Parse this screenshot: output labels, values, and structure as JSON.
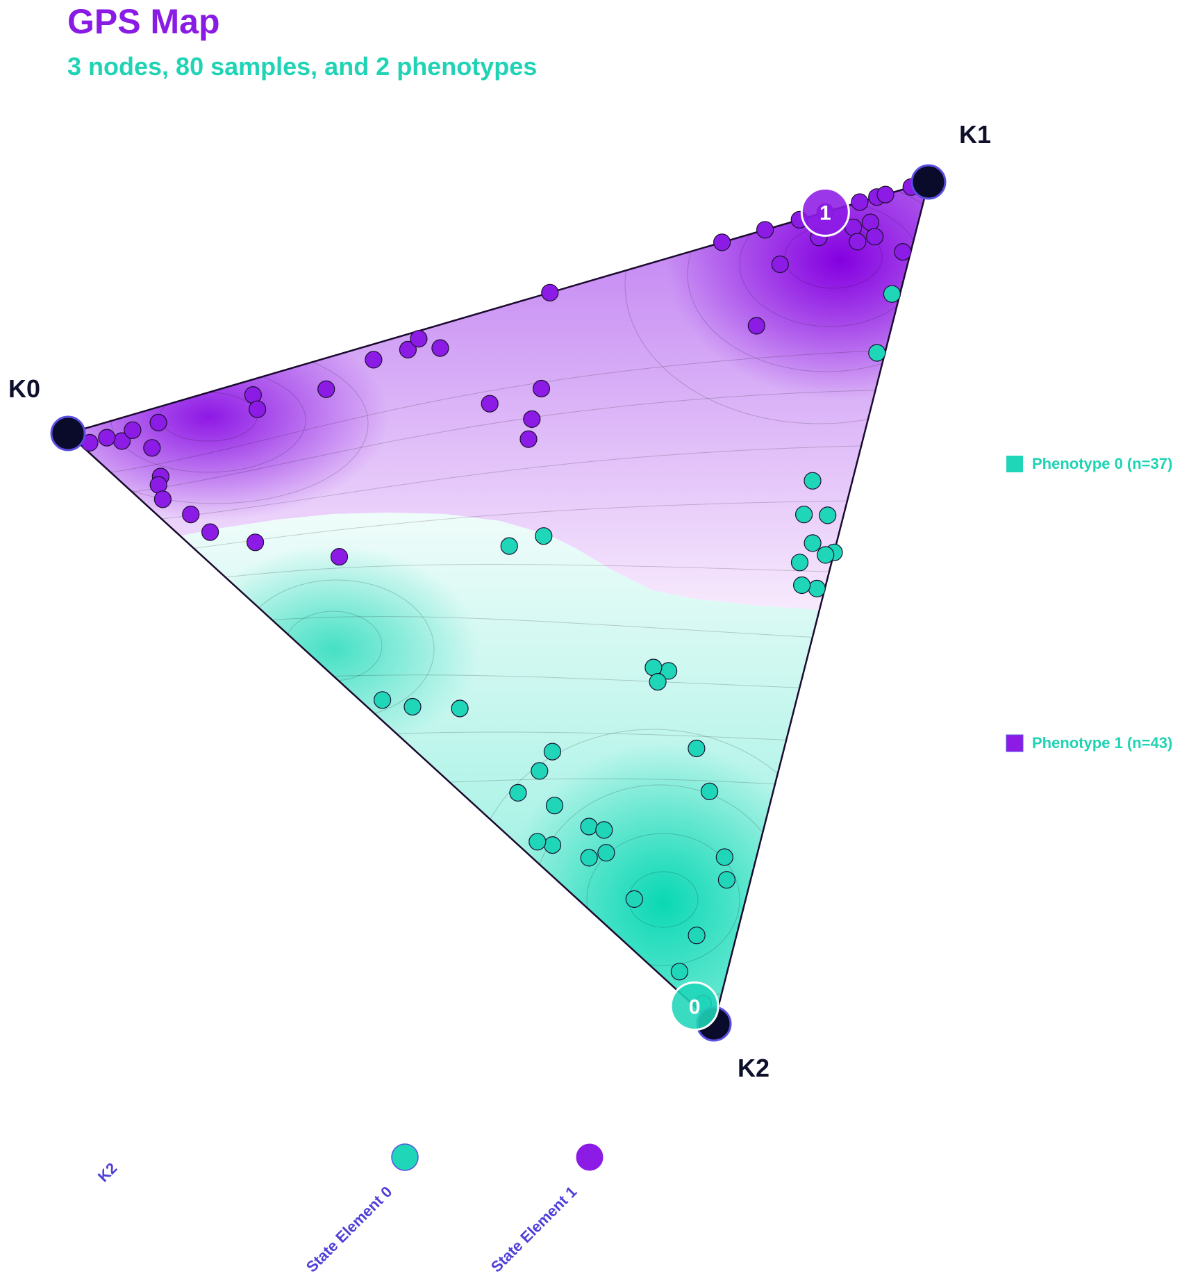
{
  "header": {
    "title": "GPS Map",
    "subtitle": "3 nodes, 80 samples, and 2 phenotypes"
  },
  "colors": {
    "title": "#8a1be4",
    "subtitle": "#1fd3b4",
    "phenotype_0": "#1fd6b8",
    "phenotype_1": "#8d1be6",
    "node": "#0a0a2a",
    "node_ring": "#5a4fe0",
    "legend_text": "#1fd3b4",
    "bottom_text": "#4f3fd8"
  },
  "chart_data": {
    "type": "scatter",
    "projection": "ternary",
    "vertices": [
      {
        "name": "K0",
        "label": "K0"
      },
      {
        "name": "K1",
        "label": "K1"
      },
      {
        "name": "K2",
        "label": "K2"
      }
    ],
    "categories": [
      {
        "label": "0",
        "phenotype": 0
      },
      {
        "label": "1",
        "phenotype": 1
      }
    ],
    "legend": [
      {
        "label": "Phenotype 0 (n=37)",
        "color": "#1fd6b8"
      },
      {
        "label": "Phenotype 1 (n=43)",
        "color": "#8d1be6"
      }
    ],
    "bottom_legend": [
      {
        "label": "K2"
      },
      {
        "label": "State Element 0",
        "color": "#1fd6b8"
      },
      {
        "label": "State Element 1",
        "color": "#8d1be6"
      }
    ],
    "series": [
      {
        "phenotype": 1,
        "points": [
          [
            0.0,
            0.99,
            0.01
          ],
          [
            0.01,
            0.97,
            0.02
          ],
          [
            0.04,
            0.93,
            0.03
          ],
          [
            0.03,
            0.95,
            0.02
          ],
          [
            0.06,
            0.92,
            0.02
          ],
          [
            0.09,
            0.89,
            0.02
          ],
          [
            0.06,
            0.89,
            0.05
          ],
          [
            0.2,
            0.78,
            0.02
          ],
          [
            0.19,
            0.77,
            0.04
          ],
          [
            0.04,
            0.87,
            0.09
          ],
          [
            0.03,
            0.87,
            0.1
          ],
          [
            0.02,
            0.86,
            0.12
          ],
          [
            0.03,
            0.82,
            0.15
          ],
          [
            0.03,
            0.79,
            0.18
          ],
          [
            0.06,
            0.73,
            0.21
          ],
          [
            0.12,
            0.62,
            0.26
          ],
          [
            0.27,
            0.69,
            0.04
          ],
          [
            0.34,
            0.64,
            0.02
          ],
          [
            0.38,
            0.6,
            0.02
          ],
          [
            0.41,
            0.56,
            0.03
          ],
          [
            0.4,
            0.59,
            0.01
          ],
          [
            0.56,
            0.44,
            0.0
          ],
          [
            0.76,
            0.24,
            0.0
          ],
          [
            0.85,
            0.15,
            0.0
          ],
          [
            0.81,
            0.19,
            0.0
          ],
          [
            0.88,
            0.12,
            0.0
          ],
          [
            0.92,
            0.08,
            0.0
          ],
          [
            0.98,
            0.02,
            0.0
          ],
          [
            0.94,
            0.06,
            0.0
          ],
          [
            0.95,
            0.05,
            0.0
          ],
          [
            0.89,
            0.08,
            0.03
          ],
          [
            0.88,
            0.07,
            0.05
          ],
          [
            0.91,
            0.06,
            0.03
          ],
          [
            0.9,
            0.05,
            0.05
          ],
          [
            0.79,
            0.16,
            0.05
          ],
          [
            0.85,
            0.12,
            0.03
          ],
          [
            0.71,
            0.17,
            0.12
          ],
          [
            0.91,
            0.01,
            0.08
          ],
          [
            0.99,
            0.0,
            0.01
          ],
          [
            0.4,
            0.42,
            0.18
          ],
          [
            0.4,
            0.48,
            0.12
          ],
          [
            0.46,
            0.42,
            0.12
          ],
          [
            0.19,
            0.19,
            0.07
          ]
        ]
      },
      {
        "phenotype": 0,
        "points": [
          [
            0.86,
            0.01,
            0.13
          ],
          [
            0.79,
            0.01,
            0.2
          ],
          [
            0.56,
            0.0,
            0.44
          ],
          [
            0.57,
            0.05,
            0.38
          ],
          [
            0.55,
            0.03,
            0.42
          ],
          [
            0.52,
            0.04,
            0.44
          ],
          [
            0.55,
            0.01,
            0.44
          ],
          [
            0.61,
            0.05,
            0.34
          ],
          [
            0.51,
            0.01,
            0.48
          ],
          [
            0.5,
            0.03,
            0.47
          ],
          [
            0.59,
            0.02,
            0.39
          ],
          [
            0.32,
            0.37,
            0.31
          ],
          [
            0.28,
            0.41,
            0.31
          ],
          [
            0.3,
            0.17,
            0.53
          ],
          [
            0.29,
            0.19,
            0.52
          ],
          [
            0.28,
            0.18,
            0.54
          ],
          [
            0.25,
            0.11,
            0.64
          ],
          [
            0.22,
            0.08,
            0.7
          ],
          [
            0.17,
            0.04,
            0.79
          ],
          [
            0.15,
            0.03,
            0.82
          ],
          [
            0.07,
            0.05,
            0.88
          ],
          [
            0.07,
            0.19,
            0.74
          ],
          [
            0.02,
            0.52,
            0.46
          ],
          [
            0.04,
            0.48,
            0.48
          ],
          [
            0.08,
            0.42,
            0.5
          ],
          [
            0.09,
            0.3,
            0.61
          ],
          [
            0.12,
            0.29,
            0.59
          ],
          [
            0.05,
            0.32,
            0.63
          ],
          [
            0.07,
            0.27,
            0.66
          ],
          [
            0.08,
            0.22,
            0.7
          ],
          [
            0.09,
            0.2,
            0.71
          ],
          [
            0.05,
            0.21,
            0.74
          ],
          [
            0.05,
            0.14,
            0.81
          ],
          [
            0.03,
            0.26,
            0.71
          ],
          [
            0.02,
            0.28,
            0.7
          ],
          [
            0.02,
            0.06,
            0.92
          ],
          [
            0.01,
            0.02,
            0.97
          ]
        ]
      }
    ]
  }
}
